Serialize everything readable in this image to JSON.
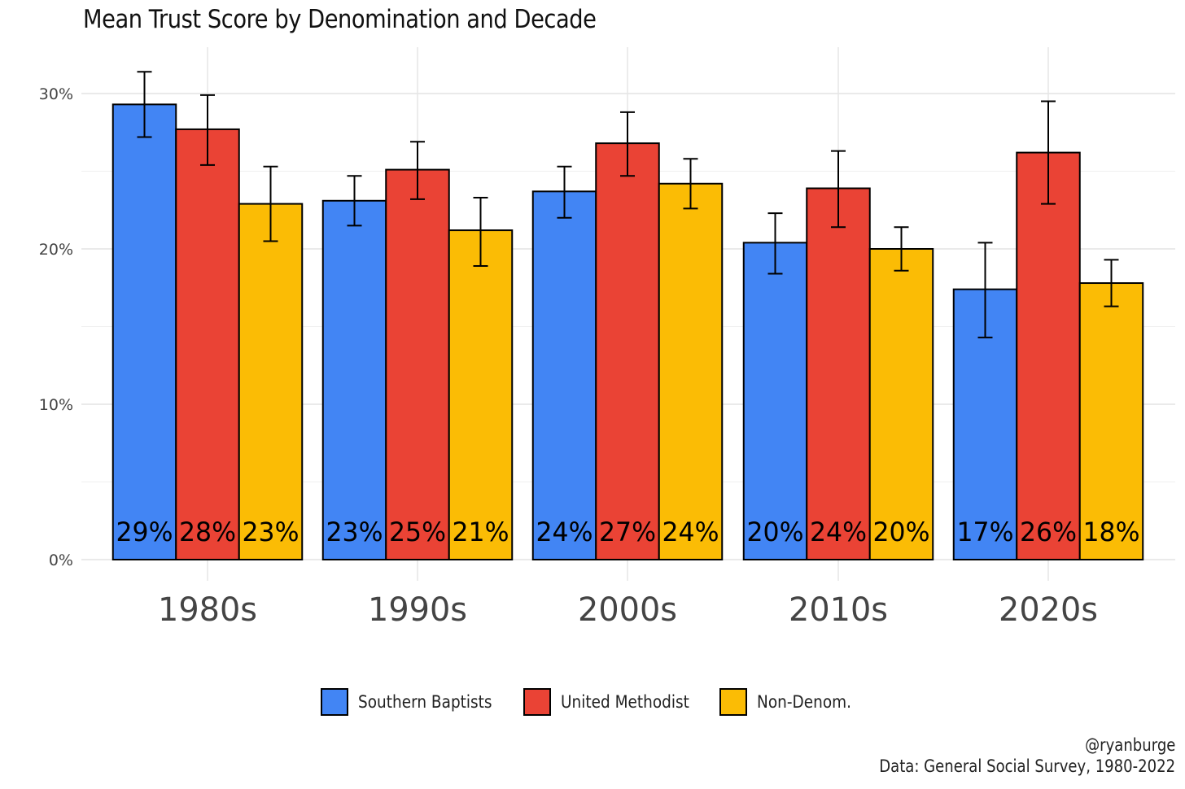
{
  "chart_data": {
    "type": "bar",
    "title": "Mean Trust Score by Denomination and Decade",
    "xlabel": "",
    "ylabel": "",
    "categories": [
      "1980s",
      "1990s",
      "2000s",
      "2010s",
      "2020s"
    ],
    "series": [
      {
        "name": "Southern Baptists",
        "color": "#4285F4",
        "values": [
          29.3,
          23.1,
          23.7,
          20.4,
          17.4
        ],
        "err_low": [
          27.2,
          21.5,
          22.0,
          18.4,
          14.3
        ],
        "err_high": [
          31.4,
          24.7,
          25.3,
          22.3,
          20.4
        ],
        "labels": [
          "29%",
          "23%",
          "24%",
          "20%",
          "17%"
        ]
      },
      {
        "name": "United Methodist",
        "color": "#EA4335",
        "values": [
          27.7,
          25.1,
          26.8,
          23.9,
          26.2
        ],
        "err_low": [
          25.4,
          23.2,
          24.7,
          21.4,
          22.9
        ],
        "err_high": [
          29.9,
          26.9,
          28.8,
          26.3,
          29.5
        ],
        "labels": [
          "28%",
          "25%",
          "27%",
          "24%",
          "26%"
        ]
      },
      {
        "name": "Non-Denom.",
        "color": "#FBBC05",
        "values": [
          22.9,
          21.2,
          24.2,
          20.0,
          17.8
        ],
        "err_low": [
          20.5,
          18.9,
          22.6,
          18.6,
          16.3
        ],
        "err_high": [
          25.3,
          23.3,
          25.8,
          21.4,
          19.3
        ],
        "labels": [
          "23%",
          "21%",
          "24%",
          "20%",
          "18%"
        ]
      }
    ],
    "ylim": [
      0,
      30
    ],
    "yticks": [
      0,
      10,
      20,
      30
    ],
    "ytick_labels": [
      "0%",
      "10%",
      "20%",
      "30%"
    ],
    "grid": true,
    "legend_position": "bottom",
    "captions": [
      "@ryanburge",
      "Data: General Social Survey, 1980-2022"
    ]
  }
}
